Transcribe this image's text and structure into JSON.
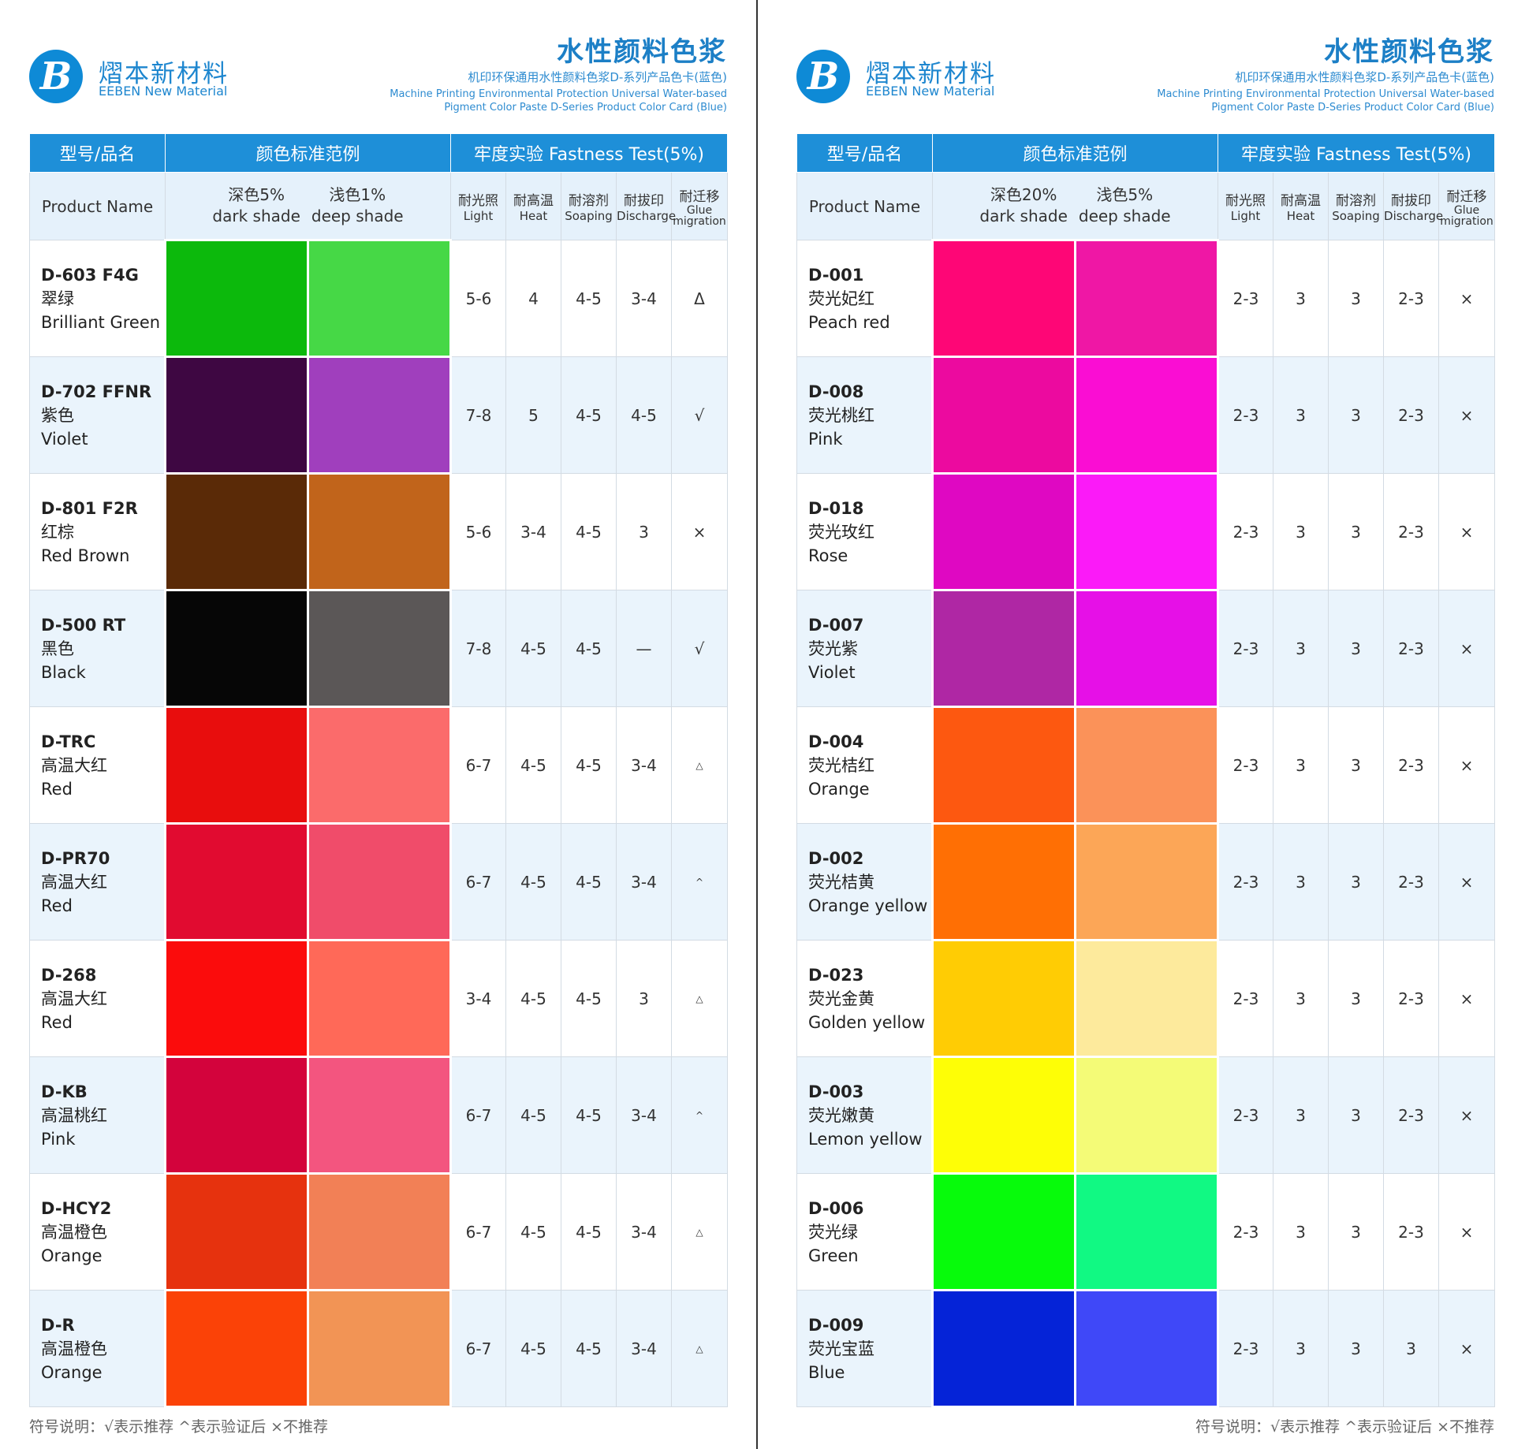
{
  "brand": {
    "cn": "熠本新材料",
    "en": "EEBEN New Material"
  },
  "title": "水性颜料色浆",
  "subtitle_cn": "机印环保通用水性颜料色浆D-系列产品色卡(蓝色)",
  "subtitle_en1": "Machine Printing Environmental Protection Universal Water-based",
  "subtitle_en2": "Pigment Color Paste D-Series Product Color Card (Blue)",
  "headers": {
    "model": "型号/品名",
    "color_std": "颜色标准范例",
    "fastness": "牢度实验  Fastness Test(5%)",
    "product_name": "Product Name",
    "light_cn": "耐光照",
    "light_en": "Light",
    "heat_cn": "耐高温",
    "heat_en": "Heat",
    "soap_cn": "耐溶剂",
    "soap_en": "Soaping",
    "disch_cn": "耐拔印",
    "disch_en": "Discharge",
    "glue_cn": "耐迁移",
    "glue_en1": "Glue",
    "glue_en2": "migration"
  },
  "left": {
    "dark_cn": "深色5%",
    "dark_en": "dark shade",
    "light_cn": "浅色1%",
    "light_en": "deep shade",
    "rows": [
      {
        "code": "D-603 F4G",
        "cn": "翠绿",
        "en": "Brilliant Green",
        "c1": "#0cb90c",
        "c2": "#46d846",
        "v": [
          "5-6",
          "4",
          "4-5",
          "3-4",
          "Δ"
        ]
      },
      {
        "code": "D-702 FFNR",
        "cn": "紫色",
        "en": "Violet",
        "c1": "#3e0742",
        "c2": "#a03fbd",
        "v": [
          "7-8",
          "5",
          "4-5",
          "4-5",
          "√"
        ]
      },
      {
        "code": "D-801 F2R",
        "cn": "红棕",
        "en": "Red Brown",
        "c1": "#5a2a07",
        "c2": "#c1641b",
        "v": [
          "5-6",
          "3-4",
          "4-5",
          "3",
          "×"
        ]
      },
      {
        "code": "D-500 RT",
        "cn": "黑色",
        "en": "Black",
        "c1": "#060606",
        "c2": "#5b5757",
        "v": [
          "7-8",
          "4-5",
          "4-5",
          "—",
          "√"
        ]
      },
      {
        "code": "D-TRC",
        "cn": "高温大红",
        "en": "Red",
        "c1": "#e80d0d",
        "c2": "#fb6b6b",
        "v": [
          "6-7",
          "4-5",
          "4-5",
          "3-4",
          "△"
        ]
      },
      {
        "code": "D-PR70",
        "cn": "高温大红",
        "en": "Red",
        "c1": "#e10b30",
        "c2": "#f04c6a",
        "v": [
          "6-7",
          "4-5",
          "4-5",
          "3-4",
          "^"
        ]
      },
      {
        "code": "D-268",
        "cn": "高温大红",
        "en": "Red",
        "c1": "#fb0c0c",
        "c2": "#ff6958",
        "v": [
          "3-4",
          "4-5",
          "4-5",
          "3",
          "△"
        ]
      },
      {
        "code": "D-KB",
        "cn": "高温桃红",
        "en": "Pink",
        "c1": "#d3033c",
        "c2": "#f3557f",
        "v": [
          "6-7",
          "4-5",
          "4-5",
          "3-4",
          "^"
        ]
      },
      {
        "code": "D-HCY2",
        "cn": "高温橙色",
        "en": "Orange",
        "c1": "#e6320e",
        "c2": "#f28056",
        "v": [
          "6-7",
          "4-5",
          "4-5",
          "3-4",
          "△"
        ]
      },
      {
        "code": "D-R",
        "cn": "高温橙色",
        "en": "Orange",
        "c1": "#fb4207",
        "c2": "#f29455",
        "v": [
          "6-7",
          "4-5",
          "4-5",
          "3-4",
          "△"
        ]
      }
    ]
  },
  "right": {
    "dark_cn": "深色20%",
    "dark_en": "dark shade",
    "light_cn": "浅色5%",
    "light_en": "deep shade",
    "rows": [
      {
        "code": "D-001",
        "cn": "荧光妃红",
        "en": "Peach red",
        "c1": "#fe0676",
        "c2": "#ef17a5",
        "v": [
          "2-3",
          "3",
          "3",
          "2-3",
          "×"
        ]
      },
      {
        "code": "D-008",
        "cn": "荧光桃红",
        "en": "Pink",
        "c1": "#ec0a9f",
        "c2": "#fa0dd3",
        "v": [
          "2-3",
          "3",
          "3",
          "2-3",
          "×"
        ]
      },
      {
        "code": "D-018",
        "cn": "荧光玫红",
        "en": "Rose",
        "c1": "#df08c2",
        "c2": "#fb1af8",
        "v": [
          "2-3",
          "3",
          "3",
          "2-3",
          "×"
        ]
      },
      {
        "code": "D-007",
        "cn": "荧光紫",
        "en": "Violet",
        "c1": "#af27a4",
        "c2": "#e610e7",
        "v": [
          "2-3",
          "3",
          "3",
          "2-3",
          "×"
        ]
      },
      {
        "code": "D-004",
        "cn": "荧光桔红",
        "en": "Orange",
        "c1": "#fd5810",
        "c2": "#fb9259",
        "v": [
          "2-3",
          "3",
          "3",
          "2-3",
          "×"
        ]
      },
      {
        "code": "D-002",
        "cn": "荧光桔黄",
        "en": "Orange yellow",
        "c1": "#ff6f04",
        "c2": "#fca657",
        "v": [
          "2-3",
          "3",
          "3",
          "2-3",
          "×"
        ]
      },
      {
        "code": "D-023",
        "cn": "荧光金黄",
        "en": "Golden yellow",
        "c1": "#ffcc04",
        "c2": "#fdea9c",
        "v": [
          "2-3",
          "3",
          "3",
          "2-3",
          "×"
        ]
      },
      {
        "code": "D-003",
        "cn": "荧光嫩黄",
        "en": "Lemon yellow",
        "c1": "#fefe06",
        "c2": "#f4fb77",
        "v": [
          "2-3",
          "3",
          "3",
          "2-3",
          "×"
        ]
      },
      {
        "code": "D-006",
        "cn": "荧光绿",
        "en": "Green",
        "c1": "#07fb0b",
        "c2": "#11f983",
        "v": [
          "2-3",
          "3",
          "3",
          "2-3",
          "×"
        ]
      },
      {
        "code": "D-009",
        "cn": "荧光宝蓝",
        "en": "Blue",
        "c1": "#0523d7",
        "c2": "#3f48f8",
        "v": [
          "2-3",
          "3",
          "3",
          "3",
          "×"
        ]
      }
    ]
  },
  "legend": "符号说明：√表示推荐  ^表示验证后 ×不推荐"
}
